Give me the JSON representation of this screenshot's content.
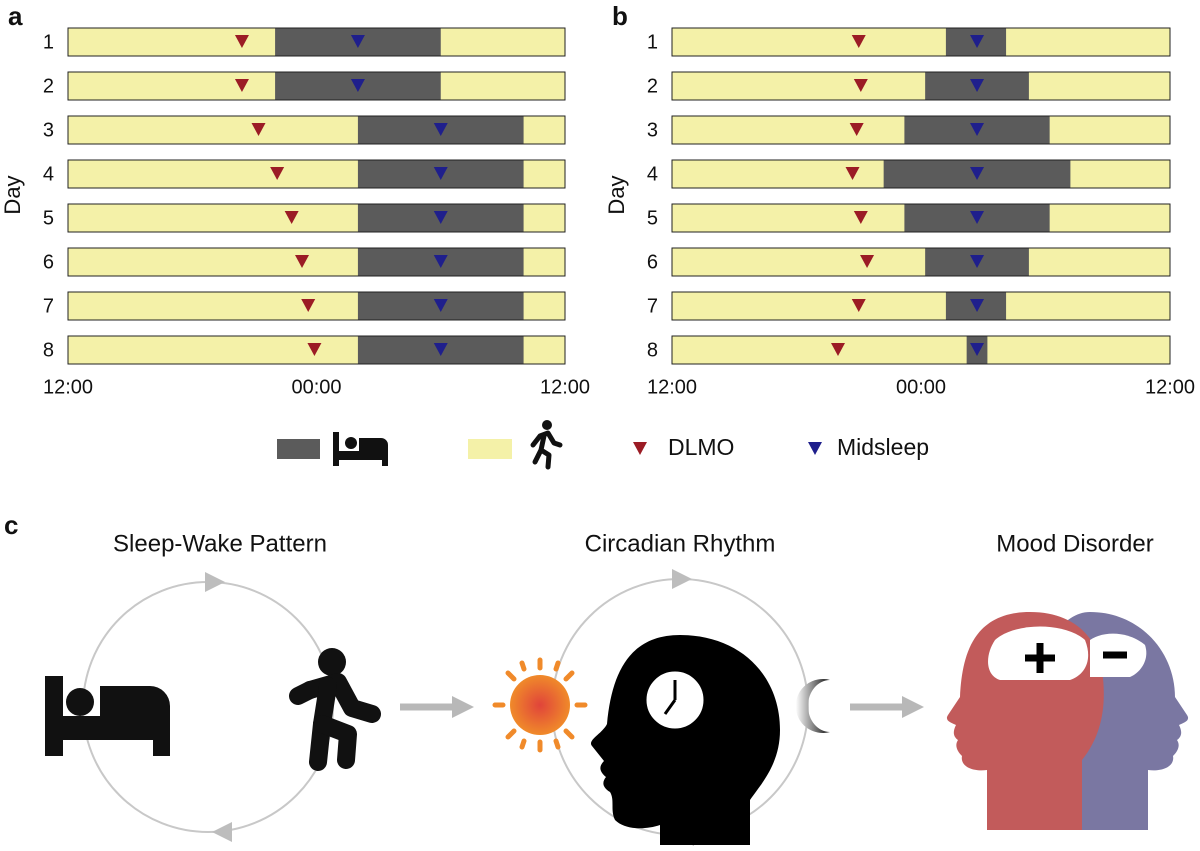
{
  "chart_data": [
    {
      "type": "timeline",
      "panel": "a",
      "ylabel": "Day",
      "categories": [
        "1",
        "2",
        "3",
        "4",
        "5",
        "6",
        "7",
        "8"
      ],
      "xlim": [
        0,
        24
      ],
      "xticks": [
        {
          "value": 0,
          "label": "12:00"
        },
        {
          "value": 12,
          "label": "00:00"
        },
        {
          "value": 24,
          "label": "12:00"
        }
      ],
      "wake_color": "#f4f1a8",
      "sleep": {
        "color": "#5b5b5b",
        "start": [
          10,
          10,
          14,
          14,
          14,
          14,
          14,
          14
        ],
        "end": [
          18,
          18,
          22,
          22,
          22,
          22,
          22,
          22
        ]
      },
      "markers": [
        {
          "name": "DLMO",
          "color": "#9b1c25",
          "values": [
            8.4,
            8.4,
            9.2,
            10.1,
            10.8,
            11.3,
            11.6,
            11.9
          ]
        },
        {
          "name": "Midsleep",
          "color": "#1f1f8c",
          "values": [
            14,
            14,
            18,
            18,
            18,
            18,
            18,
            18
          ]
        }
      ]
    },
    {
      "type": "timeline",
      "panel": "b",
      "ylabel": "Day",
      "categories": [
        "1",
        "2",
        "3",
        "4",
        "5",
        "6",
        "7",
        "8"
      ],
      "xlim": [
        0,
        24
      ],
      "xticks": [
        {
          "value": 0,
          "label": "12:00"
        },
        {
          "value": 12,
          "label": "00:00"
        },
        {
          "value": 24,
          "label": "12:00"
        }
      ],
      "wake_color": "#f4f1a8",
      "sleep": {
        "color": "#5b5b5b",
        "start": [
          13.2,
          12.2,
          11.2,
          10.2,
          11.2,
          12.2,
          13.2,
          14.2
        ],
        "end": [
          16.1,
          17.2,
          18.2,
          19.2,
          18.2,
          17.2,
          16.1,
          15.2
        ]
      },
      "markers": [
        {
          "name": "DLMO",
          "color": "#9b1c25",
          "values": [
            9.0,
            9.1,
            8.9,
            8.7,
            9.1,
            9.4,
            9.0,
            8.0
          ]
        },
        {
          "name": "Midsleep",
          "color": "#1f1f8c",
          "values": [
            14.7,
            14.7,
            14.7,
            14.7,
            14.7,
            14.7,
            14.7,
            14.7
          ]
        }
      ]
    }
  ],
  "diagram": {
    "panel": "c",
    "nodes": [
      {
        "label": "Sleep-Wake Pattern"
      },
      {
        "label": "Circadian Rhythm"
      },
      {
        "label": "Mood Disorder"
      }
    ]
  }
}
